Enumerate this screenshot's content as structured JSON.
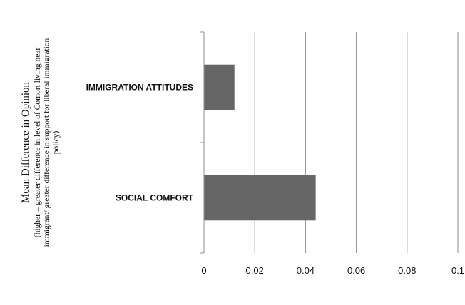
{
  "chart_data": {
    "type": "bar",
    "orientation": "horizontal",
    "categories": [
      "IMMIGRATION ATTITUDES",
      "SOCIAL COMFORT"
    ],
    "values": [
      0.012,
      0.044
    ],
    "xlim": [
      0,
      0.1
    ],
    "xticks": [
      "0",
      "0.02",
      "0.04",
      "0.06",
      "0.08",
      "0.1"
    ],
    "ylabel": "Mean Difference in Opinion",
    "ylabel_sub": [
      "(higher  =  greater difference in level of Comort living near",
      "immigrant/ greater difference in support for liberal immigration",
      "policy)"
    ],
    "grid": true,
    "bar_color": "#666666"
  }
}
